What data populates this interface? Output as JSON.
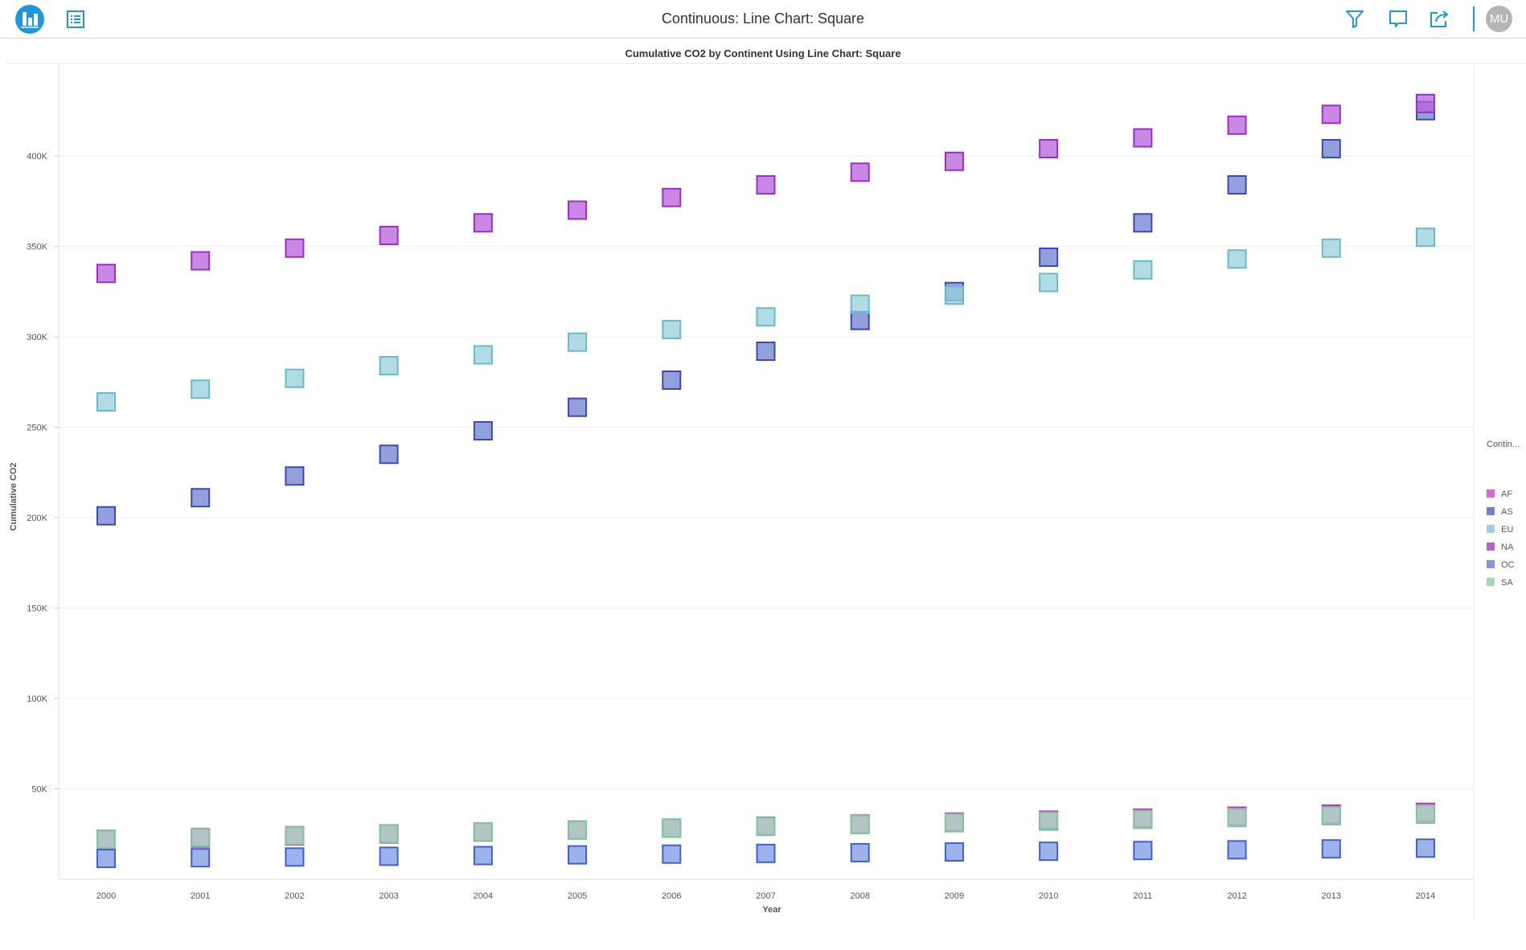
{
  "header": {
    "title": "Continuous: Line Chart: Square",
    "icons": [
      "bar-chart-logo-icon",
      "list-icon",
      "filter-icon",
      "comment-icon",
      "share-icon"
    ],
    "avatar_initials": "MU",
    "accent_color": "#1e96e0"
  },
  "chart_data": {
    "type": "scatter",
    "marker": "square",
    "title": "Cumulative CO2 by Continent Using Line Chart: Square",
    "xlabel": "Year",
    "ylabel": "Cumulative CO2",
    "x": [
      2000,
      2001,
      2002,
      2003,
      2004,
      2005,
      2006,
      2007,
      2008,
      2009,
      2010,
      2011,
      2012,
      2013,
      2014
    ],
    "ylim": [
      0,
      450000
    ],
    "yticks": [
      50000,
      100000,
      150000,
      200000,
      250000,
      300000,
      350000,
      400000
    ],
    "ytick_labels": [
      "50K",
      "100K",
      "150K",
      "200K",
      "250K",
      "300K",
      "350K",
      "400K"
    ],
    "grid": true,
    "legend": {
      "title": "Contin...",
      "placement": "right"
    },
    "series": [
      {
        "name": "AF",
        "color": "#e060e0",
        "stroke": "#d020d8",
        "values": [
          21700,
          22800,
          23900,
          25000,
          26100,
          27200,
          28300,
          29400,
          30500,
          31600,
          32700,
          33800,
          34900,
          36000,
          37000
        ]
      },
      {
        "name": "AS",
        "color": "#7080d0",
        "stroke": "#3a48b8",
        "values": [
          201000,
          211000,
          223000,
          235000,
          248000,
          261000,
          276000,
          292000,
          309000,
          325000,
          344000,
          363000,
          384000,
          404000,
          425000
        ]
      },
      {
        "name": "EU",
        "color": "#98d0dc",
        "stroke": "#6ab8cc",
        "values": [
          264000,
          271000,
          277000,
          284000,
          290000,
          297000,
          304000,
          311000,
          318000,
          323000,
          330000,
          337000,
          343000,
          349000,
          355000
        ]
      },
      {
        "name": "NA",
        "color": "#b860dc",
        "stroke": "#9a2ec8",
        "values": [
          335000,
          342000,
          349000,
          356000,
          363000,
          370000,
          377000,
          384000,
          391000,
          397000,
          404000,
          410000,
          417000,
          423000,
          429000
        ]
      },
      {
        "name": "OC",
        "color": "#7c98e4",
        "stroke": "#4060d0",
        "values": [
          11500,
          11900,
          12300,
          12700,
          13100,
          13500,
          13900,
          14300,
          14700,
          15100,
          15500,
          15900,
          16300,
          16800,
          17200
        ]
      },
      {
        "name": "SA",
        "color": "#a0d8b8",
        "stroke": "#7cc89a",
        "values": [
          22200,
          23200,
          24200,
          25200,
          26200,
          27200,
          28200,
          29200,
          30200,
          31200,
          32100,
          33100,
          34100,
          35100,
          36000
        ]
      }
    ]
  }
}
